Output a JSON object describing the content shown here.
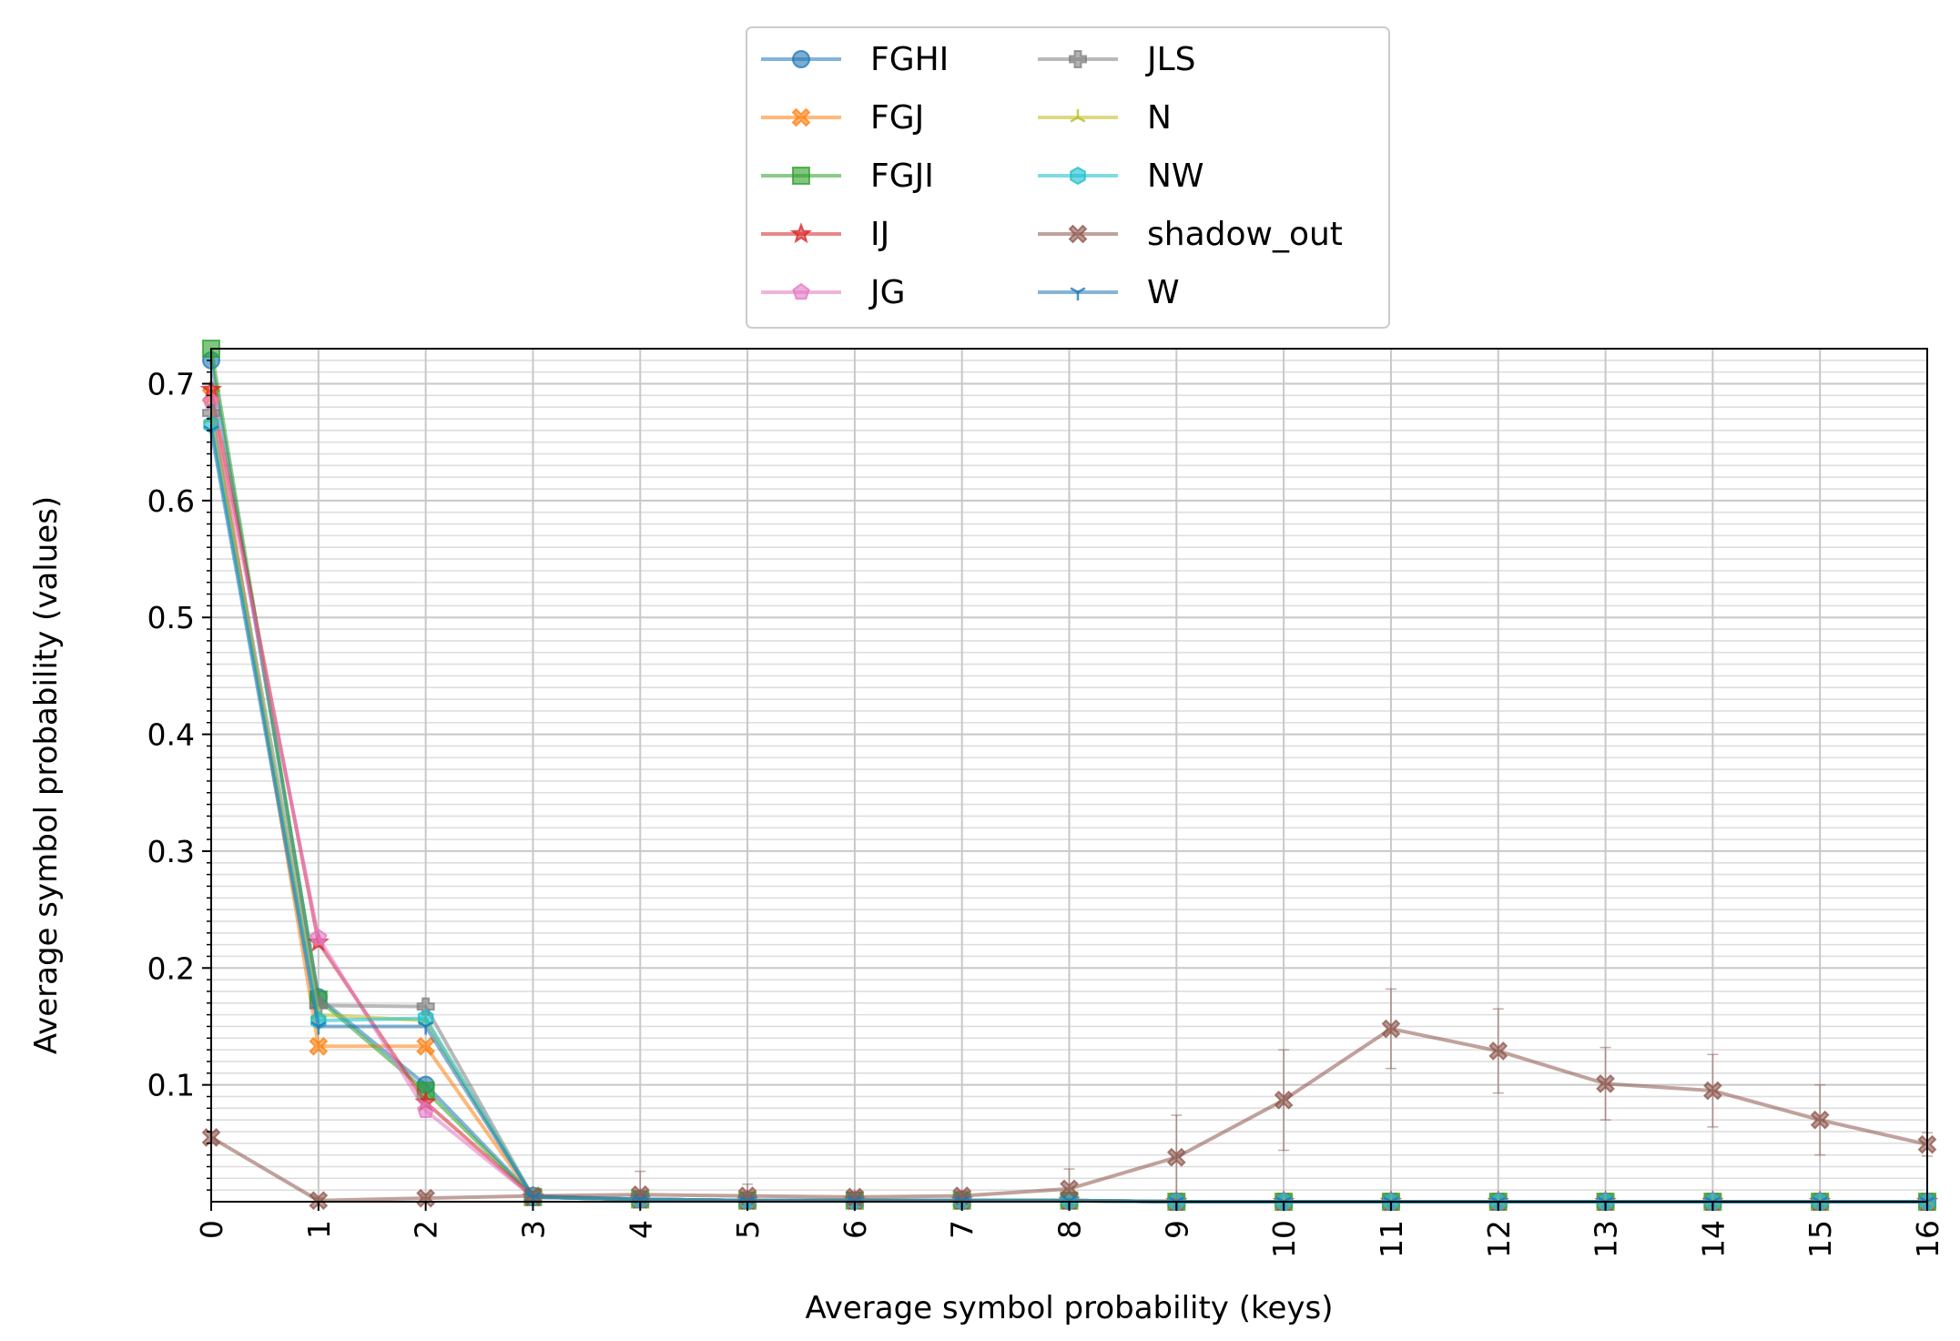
{
  "chart_data": {
    "type": "line",
    "title": "",
    "xlabel": "Average symbol probability (keys)",
    "ylabel": "Average symbol probability (values)",
    "xlim": [
      0,
      16
    ],
    "ylim": [
      0,
      0.73
    ],
    "x_ticks": [
      "0",
      "1",
      "2",
      "3",
      "4",
      "5",
      "6",
      "7",
      "8",
      "9",
      "10",
      "11",
      "12",
      "13",
      "14",
      "15",
      "16"
    ],
    "y_ticks": [
      "0.1",
      "0.2",
      "0.3",
      "0.4",
      "0.5",
      "0.6",
      "0.7"
    ],
    "grid": true,
    "legend_position": "top-center, outside plot",
    "x": [
      0,
      1,
      2,
      3,
      4,
      5,
      6,
      7,
      8,
      9,
      10,
      11,
      12,
      13,
      14,
      15,
      16
    ],
    "series": [
      {
        "name": "FGHI",
        "color": "#1f77b4",
        "marker": "circle",
        "values": [
          0.72,
          0.175,
          0.1,
          0.005,
          0.002,
          0.001,
          0.001,
          0.001,
          0.001,
          0.0,
          0.0,
          0.0,
          0.0,
          0.0,
          0.0,
          0.0,
          0.0
        ]
      },
      {
        "name": "FGJ",
        "color": "#ff7f0e",
        "marker": "x-filled",
        "values": [
          0.69,
          0.133,
          0.133,
          0.004,
          0.002,
          0.001,
          0.001,
          0.001,
          0.001,
          0.0,
          0.0,
          0.0,
          0.0,
          0.0,
          0.0,
          0.0,
          0.0
        ]
      },
      {
        "name": "FGJI",
        "color": "#2ca02c",
        "marker": "square",
        "values": [
          0.73,
          0.173,
          0.095,
          0.004,
          0.002,
          0.001,
          0.001,
          0.001,
          0.001,
          0.0,
          0.0,
          0.0,
          0.0,
          0.0,
          0.0,
          0.0,
          0.0
        ]
      },
      {
        "name": "IJ",
        "color": "#d62728",
        "marker": "star",
        "values": [
          0.695,
          0.222,
          0.085,
          0.004,
          0.002,
          0.001,
          0.001,
          0.001,
          0.001,
          0.0,
          0.0,
          0.0,
          0.0,
          0.0,
          0.0,
          0.0,
          0.0
        ]
      },
      {
        "name": "JG",
        "color": "#e377c2",
        "marker": "pentagon",
        "values": [
          0.685,
          0.226,
          0.078,
          0.004,
          0.002,
          0.001,
          0.001,
          0.001,
          0.001,
          0.0,
          0.0,
          0.0,
          0.0,
          0.0,
          0.0,
          0.0,
          0.0
        ]
      },
      {
        "name": "JLS",
        "color": "#7f7f7f",
        "marker": "plus-filled",
        "values": [
          0.675,
          0.168,
          0.167,
          0.004,
          0.002,
          0.001,
          0.001,
          0.001,
          0.001,
          0.0,
          0.0,
          0.0,
          0.0,
          0.0,
          0.0,
          0.0,
          0.0
        ]
      },
      {
        "name": "N",
        "color": "#bcbd22",
        "marker": "tri-up",
        "values": [
          0.67,
          0.16,
          0.155,
          0.004,
          0.002,
          0.001,
          0.001,
          0.001,
          0.001,
          0.0,
          0.0,
          0.0,
          0.0,
          0.0,
          0.0,
          0.0,
          0.0
        ]
      },
      {
        "name": "NW",
        "color": "#17becf",
        "marker": "hexagon",
        "values": [
          0.665,
          0.155,
          0.157,
          0.004,
          0.002,
          0.001,
          0.001,
          0.001,
          0.001,
          0.0,
          0.0,
          0.0,
          0.0,
          0.0,
          0.0,
          0.0,
          0.0
        ]
      },
      {
        "name": "shadow_out",
        "color": "#8c564b",
        "marker": "x-filled",
        "values": [
          0.055,
          0.001,
          0.003,
          0.005,
          0.006,
          0.005,
          0.004,
          0.005,
          0.011,
          0.038,
          0.087,
          0.148,
          0.129,
          0.101,
          0.095,
          0.07,
          0.049
        ],
        "errors": [
          0.005,
          0.002,
          0.003,
          0.004,
          0.02,
          0.01,
          0.004,
          0.004,
          0.017,
          0.036,
          0.043,
          0.034,
          0.036,
          0.031,
          0.031,
          0.03,
          0.01
        ]
      },
      {
        "name": "W",
        "color": "#1f77b4",
        "marker": "tri-down",
        "values": [
          0.66,
          0.15,
          0.15,
          0.004,
          0.002,
          0.001,
          0.001,
          0.001,
          0.001,
          0.0,
          0.0,
          0.0,
          0.0,
          0.0,
          0.0,
          0.0,
          0.0
        ]
      }
    ]
  }
}
